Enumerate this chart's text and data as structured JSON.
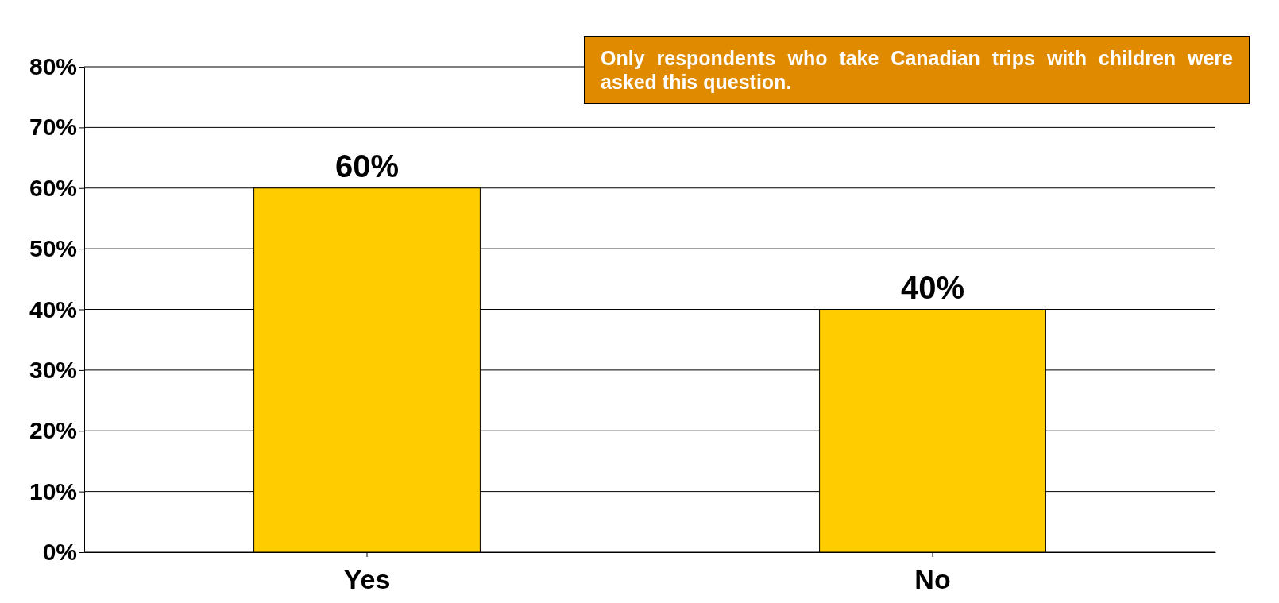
{
  "chart_data": {
    "type": "bar",
    "categories": [
      "Yes",
      "No"
    ],
    "values": [
      60,
      40
    ],
    "color": "#ffcc00",
    "value_labels": [
      "60%",
      "40%"
    ],
    "ylim": [
      0,
      80
    ],
    "yticks": [
      {
        "value": 0,
        "label": "0%"
      },
      {
        "value": 10,
        "label": "10%"
      },
      {
        "value": 20,
        "label": "20%"
      },
      {
        "value": 30,
        "label": "30%"
      },
      {
        "value": 40,
        "label": "40%"
      },
      {
        "value": 50,
        "label": "50%"
      },
      {
        "value": 60,
        "label": "60%"
      },
      {
        "value": 70,
        "label": "70%"
      },
      {
        "value": 80,
        "label": "80%"
      }
    ],
    "grid": "y",
    "annotations": [
      "Only respondents who take Canadian trips with children were asked this question."
    ]
  }
}
